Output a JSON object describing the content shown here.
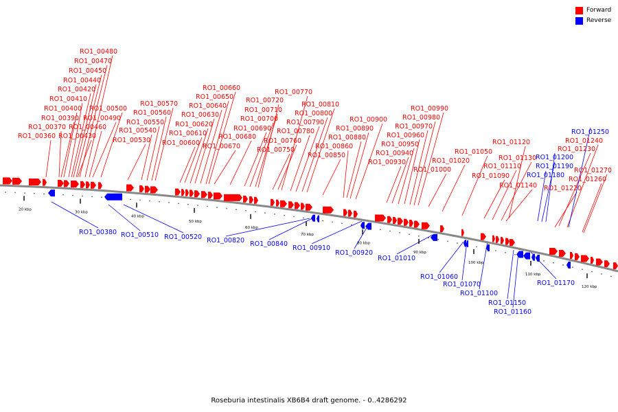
{
  "legend": [
    {
      "label": "Forward",
      "color": "#ff0000"
    },
    {
      "label": "Reverse",
      "color": "#0000ff"
    }
  ],
  "caption": "Roseburia intestinalis XB6B4 draft genome. - 0..4286292",
  "colors": {
    "forward": "#ff0000",
    "reverse": "#0000ff",
    "backbone": "#888888"
  },
  "scale_labels": [
    "20 kbp",
    "30 kbp",
    "40 kbp",
    "50 kbp",
    "60 kbp",
    "70 kbp",
    "80 kbp",
    "90 kbp",
    "100 kbp",
    "110 kbp",
    "120 kbp"
  ],
  "forward_labels": [
    "RO1_00360",
    "RO1_00370",
    "RO1_00390",
    "RO1_00400",
    "RO1_00410",
    "RO1_00420",
    "RO1_00440",
    "RO1_00450",
    "RO1_00470",
    "RO1_00480",
    "RO1_00430",
    "RO1_00460",
    "RO1_00490",
    "RO1_00500",
    "RO1_00530",
    "RO1_00540",
    "RO1_00550",
    "RO1_00560",
    "RO1_00570",
    "RO1_00600",
    "RO1_00610",
    "RO1_00620",
    "RO1_00630",
    "RO1_00640",
    "RO1_00650",
    "RO1_00660",
    "RO1_00670",
    "RO1_00680",
    "RO1_00690",
    "RO1_00700",
    "RO1_00710",
    "RO1_00720",
    "RO1_00750",
    "RO1_00760",
    "RO1_00770",
    "RO1_00780",
    "RO1_00790",
    "RO1_00800",
    "RO1_00810",
    "RO1_00850",
    "RO1_00860",
    "RO1_00880",
    "RO1_00890",
    "RO1_00900",
    "RO1_00930",
    "RO1_00940",
    "RO1_00950",
    "RO1_00960",
    "RO1_00970",
    "RO1_00980",
    "RO1_00990",
    "RO1_01000",
    "RO1_01020",
    "RO1_01050",
    "RO1_01090",
    "RO1_01110",
    "RO1_01120",
    "RO1_01130",
    "RO1_01140",
    "RO1_01220",
    "RO1_01230",
    "RO1_01240",
    "RO1_01260",
    "RO1_01270"
  ],
  "reverse_labels": [
    "RO1_00380",
    "RO1_00510",
    "RO1_00520",
    "RO1_00820",
    "RO1_00840",
    "RO1_00910",
    "RO1_00920",
    "RO1_01010",
    "RO1_01060",
    "RO1_01070",
    "RO1_01100",
    "RO1_01150",
    "RO1_01160",
    "RO1_01170",
    "RO1_01180",
    "RO1_01190",
    "RO1_01200",
    "RO1_01250"
  ]
}
